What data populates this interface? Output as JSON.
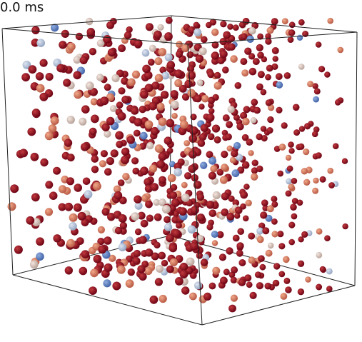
{
  "time_label": "0.0 ms"
}
